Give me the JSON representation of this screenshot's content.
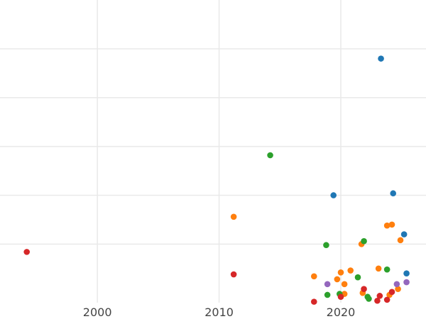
{
  "chart_data": {
    "type": "scatter",
    "title": "",
    "xlabel": "",
    "ylabel": "",
    "xlim": [
      1992,
      2027
    ],
    "ylim": [
      -1,
      30
    ],
    "x_ticks": [
      2000,
      2010,
      2020
    ],
    "y_ticks": [
      5,
      10,
      15,
      20,
      25
    ],
    "show_y_tick_labels": false,
    "grid": true,
    "colors": {
      "blue": "#1f77b4",
      "orange": "#ff7f0e",
      "green": "#2ca02c",
      "red": "#d62728",
      "purple": "#9467bd",
      "grid": "#e9e9e9",
      "axis_text": "#444444"
    },
    "series": [
      {
        "color": "#1f77b4",
        "points": [
          {
            "x": 2023.3,
            "y": 24.0
          },
          {
            "x": 2024.3,
            "y": 10.2
          },
          {
            "x": 2019.4,
            "y": 10.0
          },
          {
            "x": 2025.2,
            "y": 6.0
          },
          {
            "x": 2025.4,
            "y": 2.0
          }
        ]
      },
      {
        "color": "#ff7f0e",
        "points": [
          {
            "x": 2011.2,
            "y": 7.8
          },
          {
            "x": 2023.8,
            "y": 6.9
          },
          {
            "x": 2024.2,
            "y": 7.0
          },
          {
            "x": 2024.9,
            "y": 5.4
          },
          {
            "x": 2021.7,
            "y": 5.0
          },
          {
            "x": 2023.1,
            "y": 2.5
          },
          {
            "x": 2020.0,
            "y": 2.1
          },
          {
            "x": 2020.8,
            "y": 2.3
          },
          {
            "x": 2017.8,
            "y": 1.7
          },
          {
            "x": 2019.7,
            "y": 1.4
          },
          {
            "x": 2020.3,
            "y": 0.9
          },
          {
            "x": 2024.7,
            "y": 0.4
          },
          {
            "x": 2021.8,
            "y": 0.0
          },
          {
            "x": 2020.3,
            "y": -0.1
          },
          {
            "x": 2024.0,
            "y": -0.2
          }
        ]
      },
      {
        "color": "#2ca02c",
        "points": [
          {
            "x": 2014.2,
            "y": 14.1
          },
          {
            "x": 2018.8,
            "y": 4.9
          },
          {
            "x": 2021.9,
            "y": 5.3
          },
          {
            "x": 2023.8,
            "y": 2.4
          },
          {
            "x": 2021.4,
            "y": 1.6
          },
          {
            "x": 2018.9,
            "y": -0.2
          },
          {
            "x": 2019.9,
            "y": -0.1
          },
          {
            "x": 2022.2,
            "y": -0.4
          },
          {
            "x": 2022.3,
            "y": -0.6
          }
        ]
      },
      {
        "color": "#d62728",
        "points": [
          {
            "x": 1994.2,
            "y": 4.2
          },
          {
            "x": 2011.2,
            "y": 1.9
          },
          {
            "x": 2021.9,
            "y": 0.4
          },
          {
            "x": 2024.2,
            "y": 0.1
          },
          {
            "x": 2023.2,
            "y": -0.3
          },
          {
            "x": 2020.0,
            "y": -0.4
          },
          {
            "x": 2017.8,
            "y": -0.9
          },
          {
            "x": 2023.0,
            "y": -0.8
          },
          {
            "x": 2023.8,
            "y": -0.7
          }
        ]
      },
      {
        "color": "#9467bd",
        "points": [
          {
            "x": 2018.9,
            "y": 0.9
          },
          {
            "x": 2024.6,
            "y": 0.9
          },
          {
            "x": 2025.4,
            "y": 1.1
          }
        ]
      }
    ]
  }
}
